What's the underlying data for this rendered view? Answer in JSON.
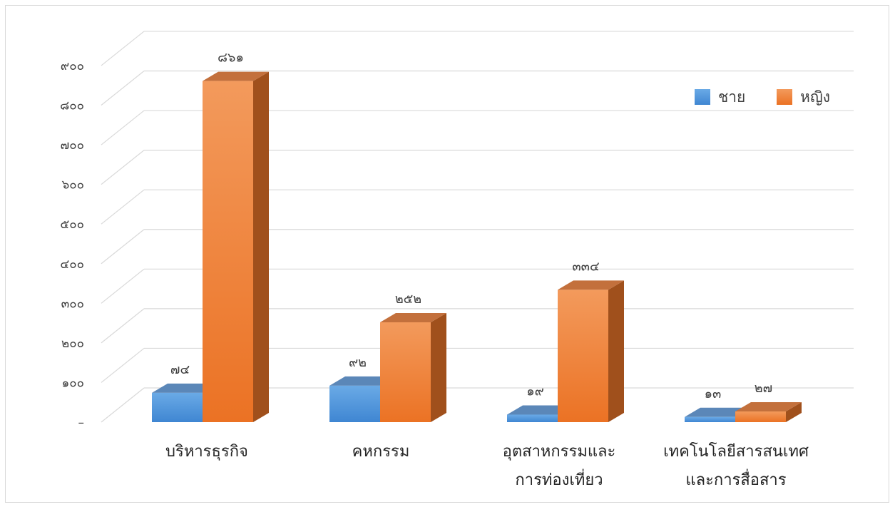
{
  "chart_data": {
    "type": "bar",
    "title": "",
    "xlabel": "",
    "ylabel": "",
    "categories": [
      [
        "บริหารธุรกิจ"
      ],
      [
        "คหกรรม"
      ],
      [
        "อุตสาหกรรมและ",
        "การท่องเที่ยว"
      ],
      [
        "เทคโนโลยีสารสนเทศ",
        "และการสื่อสาร"
      ]
    ],
    "series": [
      {
        "name": "ชาย",
        "values": [
          74,
          92,
          19,
          13
        ],
        "labels": [
          "๗๔",
          "๙๒",
          "๑๙",
          "๑๓"
        ],
        "color": "#4a90d9"
      },
      {
        "name": "หญิง",
        "values": [
          861,
          252,
          334,
          27
        ],
        "labels": [
          "๘๖๑",
          "๒๕๒",
          "๓๓๔",
          "๒๗"
        ],
        "color": "#ed7d31"
      }
    ],
    "ylim": [
      0,
      900
    ],
    "y_ticks": [
      {
        "value": 0,
        "label": "–"
      },
      {
        "value": 100,
        "label": "๑๐๐"
      },
      {
        "value": 200,
        "label": "๒๐๐"
      },
      {
        "value": 300,
        "label": "๓๐๐"
      },
      {
        "value": 400,
        "label": "๔๐๐"
      },
      {
        "value": 500,
        "label": "๕๐๐"
      },
      {
        "value": 600,
        "label": "๖๐๐"
      },
      {
        "value": 700,
        "label": "๗๐๐"
      },
      {
        "value": 800,
        "label": "๘๐๐"
      },
      {
        "value": 900,
        "label": "๙๐๐"
      }
    ],
    "grid": true,
    "legend_position": "top-right",
    "style": "3d-clustered-column"
  }
}
